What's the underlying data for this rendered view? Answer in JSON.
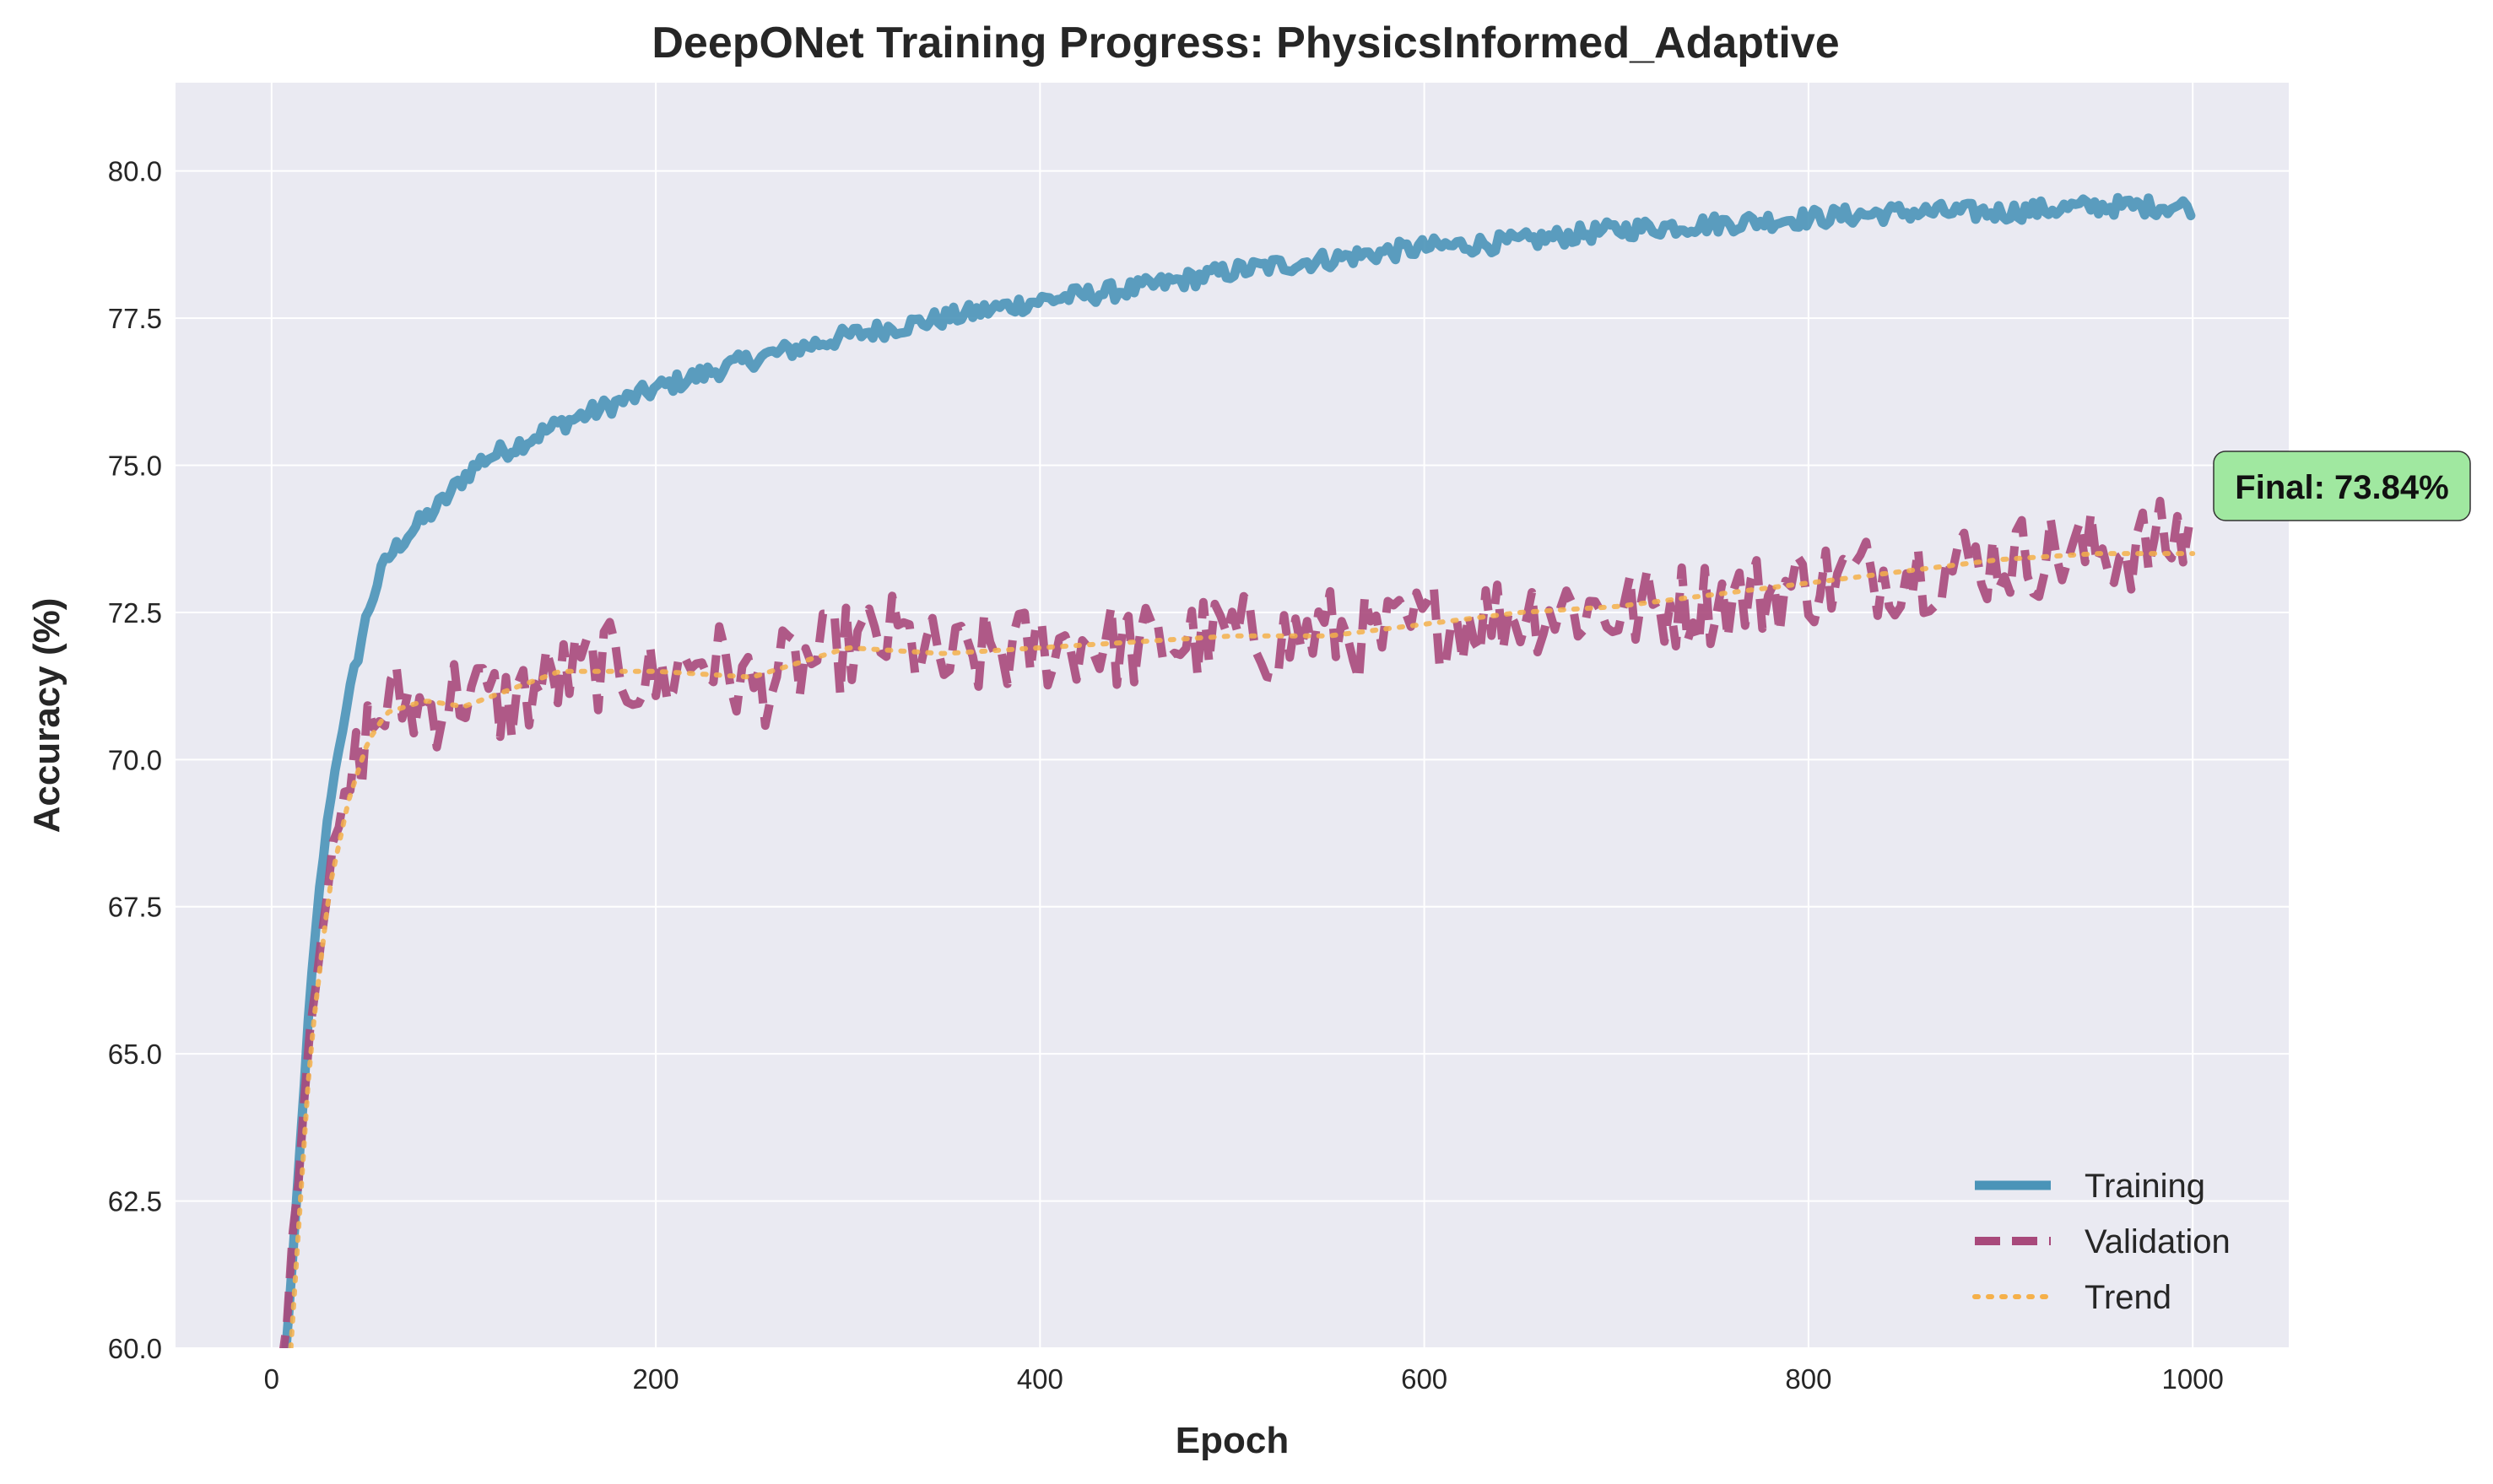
{
  "chart_data": {
    "type": "line",
    "title": "DeepONet Training Progress: PhysicsInformed_Adaptive",
    "xlabel": "Epoch",
    "ylabel": "Accuracy (%)",
    "xlim": [
      -50,
      1050
    ],
    "ylim": [
      60,
      81.5
    ],
    "xticks": [
      "0",
      "200",
      "400",
      "600",
      "800",
      "1000"
    ],
    "yticks": [
      "60.0",
      "62.5",
      "65.0",
      "67.5",
      "70.0",
      "72.5",
      "75.0",
      "77.5",
      "80.0"
    ],
    "grid": true,
    "legend_position": "bottom-right",
    "annotation": {
      "text": "Final: 73.84%",
      "value": 73.84,
      "color": "#a0e8a0"
    },
    "colors": {
      "plot_bg": "#eaeaf2",
      "grid": "#ffffff",
      "training": "#4a94b8",
      "validation": "#a8497b",
      "trend": "#f5b04a"
    },
    "series": [
      {
        "name": "Training",
        "style": "solid",
        "x": [
          5,
          10,
          15,
          20,
          25,
          30,
          35,
          40,
          45,
          50,
          55,
          60,
          70,
          80,
          90,
          100,
          110,
          125,
          150,
          175,
          200,
          250,
          300,
          350,
          400,
          450,
          500,
          550,
          600,
          650,
          700,
          750,
          800,
          850,
          900,
          950,
          1000
        ],
        "y": [
          59.0,
          61.0,
          63.5,
          66.0,
          67.8,
          69.2,
          70.2,
          71.0,
          71.8,
          72.5,
          73.0,
          73.4,
          73.8,
          74.1,
          74.4,
          74.8,
          75.1,
          75.3,
          75.7,
          76.0,
          76.3,
          76.8,
          77.2,
          77.5,
          77.8,
          78.0,
          78.3,
          78.5,
          78.7,
          78.8,
          79.0,
          79.1,
          79.2,
          79.3,
          79.3,
          79.4,
          79.4
        ]
      },
      {
        "name": "Validation",
        "style": "dashed",
        "x": [
          5,
          10,
          15,
          20,
          25,
          30,
          35,
          40,
          45,
          50,
          60,
          70,
          80,
          100,
          120,
          150,
          175,
          200,
          225,
          250,
          275,
          300,
          325,
          350,
          375,
          400,
          425,
          450,
          475,
          500,
          525,
          550,
          575,
          600,
          625,
          650,
          675,
          700,
          725,
          750,
          775,
          800,
          825,
          850,
          875,
          900,
          925,
          950,
          975,
          1000
        ],
        "y": [
          59.5,
          61.5,
          63.5,
          65.5,
          67.0,
          68.0,
          68.8,
          69.5,
          70.0,
          70.5,
          70.9,
          71.0,
          70.8,
          71.2,
          70.9,
          71.4,
          71.6,
          71.3,
          71.8,
          71.2,
          71.6,
          71.9,
          72.1,
          71.6,
          71.8,
          71.9,
          72.0,
          71.9,
          72.0,
          72.1,
          72.0,
          72.2,
          72.0,
          72.3,
          72.4,
          72.5,
          72.6,
          72.5,
          72.6,
          72.7,
          72.8,
          73.0,
          73.1,
          73.2,
          73.3,
          73.4,
          73.5,
          73.5,
          73.6,
          73.84
        ]
      },
      {
        "name": "Trend",
        "style": "dotted",
        "x": [
          10,
          20,
          30,
          40,
          50,
          60,
          80,
          100,
          150,
          200,
          250,
          300,
          350,
          400,
          450,
          500,
          550,
          600,
          650,
          700,
          750,
          800,
          850,
          900,
          950,
          1000
        ],
        "y": [
          60.0,
          65.0,
          67.8,
          69.3,
          70.3,
          70.8,
          71.0,
          70.9,
          71.5,
          71.5,
          71.4,
          71.9,
          71.8,
          71.9,
          72.0,
          72.1,
          72.1,
          72.3,
          72.5,
          72.6,
          72.8,
          73.0,
          73.2,
          73.4,
          73.5,
          73.5
        ]
      }
    ]
  }
}
